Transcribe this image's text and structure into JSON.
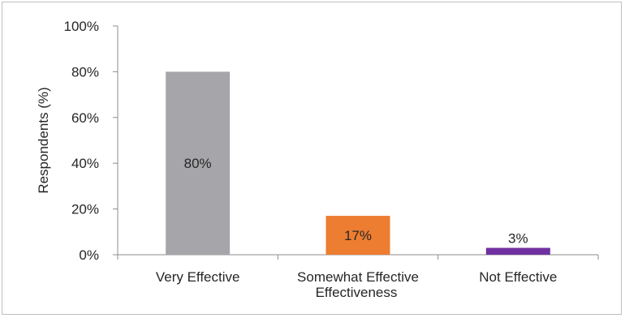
{
  "chart_data": {
    "type": "bar",
    "categories": [
      "Very Effective",
      "Somewhat Effective",
      "Not Effective"
    ],
    "values": [
      80,
      17,
      3
    ],
    "data_labels": [
      "80%",
      "17%",
      "3%"
    ],
    "colors": [
      "#a6a6aa",
      "#ed7d31",
      "#7030a0"
    ],
    "ylabel": "Respondents (%)",
    "xlabel": "Effectiveness",
    "ylim": [
      0,
      100
    ],
    "yticks": [
      0,
      20,
      40,
      60,
      80,
      100
    ],
    "ytick_labels": [
      "0%",
      "20%",
      "40%",
      "60%",
      "80%",
      "100%"
    ],
    "label_position": [
      "inside-middle",
      "inside-middle",
      "above"
    ],
    "grid": false,
    "legend": "none"
  }
}
